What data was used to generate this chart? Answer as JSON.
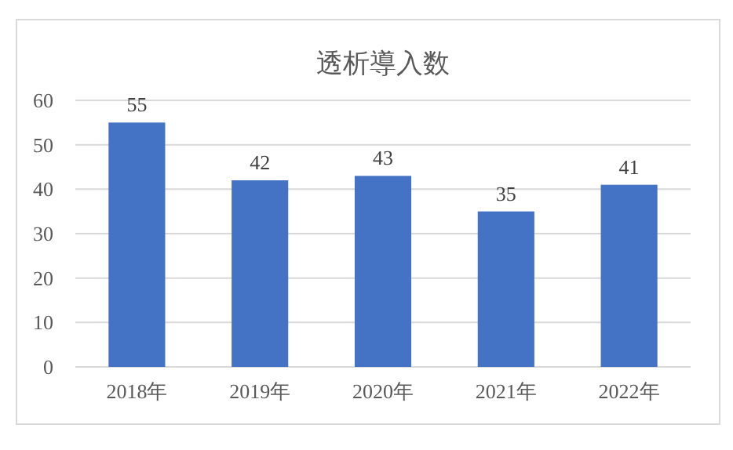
{
  "chart_data": {
    "type": "bar",
    "title": "透析導入数",
    "categories": [
      "2018年",
      "2019年",
      "2020年",
      "2021年",
      "2022年"
    ],
    "values": [
      55,
      42,
      43,
      35,
      41
    ],
    "color": "#4472c4",
    "ylim": [
      0,
      60
    ],
    "yticks": [
      0,
      10,
      20,
      30,
      40,
      50,
      60
    ],
    "grid": "y",
    "data_labels": true
  }
}
